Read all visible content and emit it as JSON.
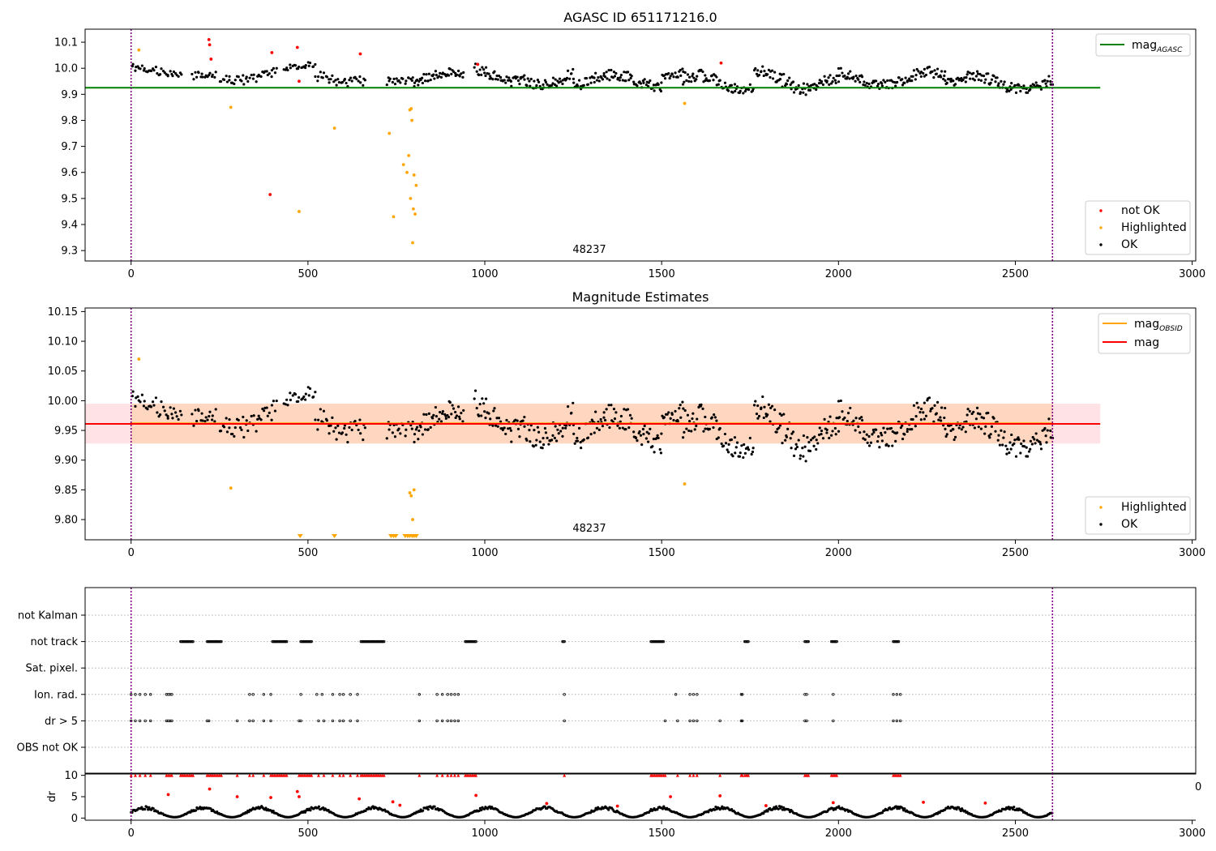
{
  "colors": {
    "ok": "#000000",
    "not_ok": "#ff0000",
    "highlighted": "#ffa500",
    "mag_agasc_line": "#008000",
    "mag_obsid_line": "#ffa500",
    "mag_line": "#ff0000",
    "band_red": "#ffb6c1",
    "band_orange": "#ffcc99",
    "obs_boundary": "#800080",
    "grid": "#b0b0b0"
  },
  "chart_data": [
    {
      "type": "scatter",
      "title": "AGASC ID 651171216.0",
      "annotation": "48237",
      "xlim": [
        -130,
        3010
      ],
      "ylim": [
        9.26,
        10.15
      ],
      "x_ticks": [
        0,
        500,
        1000,
        1500,
        2000,
        2500,
        3000
      ],
      "x_tick_labels": [
        "0",
        "500",
        "1000",
        "1500",
        "2000",
        "2500",
        "3000"
      ],
      "y_ticks": [
        9.3,
        9.4,
        9.5,
        9.6,
        9.7,
        9.8,
        9.9,
        10.0,
        10.1
      ],
      "y_tick_labels": [
        "9.3",
        "9.4",
        "9.5",
        "9.6",
        "9.7",
        "9.8",
        "9.9",
        "10.0",
        "10.1"
      ],
      "obs_boundaries": [
        0,
        2605
      ],
      "reference_lines": [
        {
          "name": "mag",
          "subscript": "AGASC",
          "y": 9.925,
          "x_range": [
            -130,
            2740
          ]
        }
      ],
      "legend_lines": [
        {
          "label": "mag",
          "subscript": "AGASC"
        }
      ],
      "legend_points": [
        {
          "label": "not OK"
        },
        {
          "label": "Highlighted"
        },
        {
          "label": "OK"
        }
      ],
      "ok_series": {
        "name": "OK",
        "segments": [
          {
            "x": [
              0,
              140
            ],
            "center": 9.985,
            "spread": 0.035,
            "step": 4
          },
          {
            "x": [
              170,
              240
            ],
            "center": 9.96,
            "spread": 0.03,
            "step": 4
          },
          {
            "x": [
              250,
              410
            ],
            "center": 9.975,
            "spread": 0.04,
            "step": 4
          },
          {
            "x": [
              430,
              520
            ],
            "center": 9.995,
            "spread": 0.03,
            "step": 4
          },
          {
            "x": [
              520,
              660
            ],
            "center": 9.97,
            "spread": 0.045,
            "step": 4
          },
          {
            "x": [
              720,
              800
            ],
            "center": 9.935,
            "spread": 0.035,
            "step": 4
          },
          {
            "x": [
              800,
              940
            ],
            "center": 9.965,
            "spread": 0.04,
            "step": 3
          },
          {
            "x": [
              970,
              1100
            ],
            "center": 9.975,
            "spread": 0.045,
            "step": 3
          },
          {
            "x": [
              1100,
              1250
            ],
            "center": 9.965,
            "spread": 0.045,
            "step": 3
          },
          {
            "x": [
              1250,
              1500
            ],
            "center": 9.95,
            "spread": 0.045,
            "step": 3
          },
          {
            "x": [
              1500,
              1560
            ],
            "center": 9.995,
            "spread": 0.035,
            "step": 3
          },
          {
            "x": [
              1560,
              1760
            ],
            "center": 9.945,
            "spread": 0.05,
            "step": 3
          },
          {
            "x": [
              1760,
              2000
            ],
            "center": 9.955,
            "spread": 0.06,
            "step": 3
          },
          {
            "x": [
              2000,
              2300
            ],
            "center": 9.96,
            "spread": 0.045,
            "step": 3
          },
          {
            "x": [
              2300,
              2605
            ],
            "center": 9.945,
            "spread": 0.045,
            "step": 3
          }
        ]
      },
      "not_ok_points": {
        "x": [
          220,
          222,
          226,
          393,
          398,
          470,
          475,
          648,
          980,
          1668
        ],
        "y": [
          10.11,
          10.09,
          10.035,
          9.515,
          10.06,
          10.08,
          9.95,
          10.055,
          10.015,
          10.02
        ]
      },
      "highlighted_points": {
        "x": [
          22,
          282,
          475,
          575,
          730,
          742,
          770,
          780,
          785,
          788,
          790,
          792,
          794,
          796,
          798,
          800,
          803,
          806,
          1565
        ],
        "y": [
          10.07,
          9.85,
          9.45,
          9.77,
          9.75,
          9.43,
          9.63,
          9.6,
          9.665,
          9.84,
          9.5,
          9.845,
          9.8,
          9.33,
          9.46,
          9.59,
          9.44,
          9.55,
          9.865
        ]
      }
    },
    {
      "type": "scatter",
      "title": "Magnitude Estimates",
      "annotation": "48237",
      "xlim": [
        -130,
        3010
      ],
      "ylim": [
        9.766,
        10.156
      ],
      "x_ticks": [
        0,
        500,
        1000,
        1500,
        2000,
        2500,
        3000
      ],
      "x_tick_labels": [
        "0",
        "500",
        "1000",
        "1500",
        "2000",
        "2500",
        "3000"
      ],
      "y_ticks": [
        9.8,
        9.85,
        9.9,
        9.95,
        10.0,
        10.05,
        10.1,
        10.15
      ],
      "y_tick_labels": [
        "9.80",
        "9.85",
        "9.90",
        "9.95",
        "10.00",
        "10.05",
        "10.10",
        "10.15"
      ],
      "obs_boundaries": [
        0,
        2605
      ],
      "bands": [
        {
          "name": "mag range",
          "y": [
            9.928,
            9.995
          ],
          "x_range": [
            -130,
            2740
          ]
        },
        {
          "name": "mag_OBSID range",
          "y": [
            9.928,
            9.995
          ],
          "x_range": [
            0,
            2605
          ]
        }
      ],
      "reference_lines": [
        {
          "name": "mag",
          "subscript": "OBSID",
          "y": 9.962,
          "x_range": [
            0,
            2605
          ]
        },
        {
          "name": "mag",
          "y": 9.961,
          "x_range": [
            -130,
            2740
          ]
        }
      ],
      "legend_lines": [
        {
          "label": "mag",
          "subscript": "OBSID"
        },
        {
          "label": "mag"
        }
      ],
      "legend_points": [
        {
          "label": "Highlighted"
        },
        {
          "label": "OK"
        }
      ],
      "ok_series": {
        "name": "OK",
        "segments": [
          {
            "x": [
              0,
              140
            ],
            "center": 9.985,
            "spread": 0.035,
            "step": 4
          },
          {
            "x": [
              170,
              240
            ],
            "center": 9.96,
            "spread": 0.03,
            "step": 4
          },
          {
            "x": [
              250,
              410
            ],
            "center": 9.975,
            "spread": 0.04,
            "step": 4
          },
          {
            "x": [
              430,
              520
            ],
            "center": 9.995,
            "spread": 0.03,
            "step": 4
          },
          {
            "x": [
              520,
              660
            ],
            "center": 9.97,
            "spread": 0.045,
            "step": 4
          },
          {
            "x": [
              720,
              800
            ],
            "center": 9.935,
            "spread": 0.035,
            "step": 4
          },
          {
            "x": [
              800,
              940
            ],
            "center": 9.965,
            "spread": 0.04,
            "step": 3
          },
          {
            "x": [
              970,
              1100
            ],
            "center": 9.975,
            "spread": 0.045,
            "step": 3
          },
          {
            "x": [
              1100,
              1250
            ],
            "center": 9.965,
            "spread": 0.045,
            "step": 3
          },
          {
            "x": [
              1250,
              1500
            ],
            "center": 9.95,
            "spread": 0.045,
            "step": 3
          },
          {
            "x": [
              1500,
              1560
            ],
            "center": 9.995,
            "spread": 0.035,
            "step": 3
          },
          {
            "x": [
              1560,
              1760
            ],
            "center": 9.945,
            "spread": 0.05,
            "step": 3
          },
          {
            "x": [
              1760,
              2000
            ],
            "center": 9.955,
            "spread": 0.06,
            "step": 3
          },
          {
            "x": [
              2000,
              2300
            ],
            "center": 9.96,
            "spread": 0.045,
            "step": 3
          },
          {
            "x": [
              2300,
              2605
            ],
            "center": 9.945,
            "spread": 0.045,
            "step": 3
          }
        ]
      },
      "highlighted_points": {
        "x": [
          22,
          282,
          788,
          792,
          796,
          800,
          1565
        ],
        "y": [
          10.07,
          9.853,
          9.845,
          9.84,
          9.8,
          9.85,
          9.86
        ]
      },
      "clipped_markers": {
        "x": [
          478,
          575,
          735,
          742,
          748,
          775,
          782,
          788,
          795,
          800,
          806
        ],
        "y_value": "below 9.80"
      }
    },
    {
      "type": "scatter",
      "categories": [
        "not Kalman",
        "not track",
        "Sat. pixel.",
        "Ion. rad.",
        "dr > 5",
        "OBS not OK"
      ],
      "xlim": [
        -130,
        3010
      ],
      "obs_boundaries": [
        0,
        2605
      ],
      "flags": {
        "not track": [
          [
            140,
            175
          ],
          [
            215,
            255
          ],
          [
            400,
            440
          ],
          [
            480,
            510
          ],
          [
            650,
            715
          ],
          [
            945,
            975
          ],
          [
            1220,
            1225
          ],
          [
            1470,
            1505
          ],
          [
            1735,
            1745
          ],
          [
            1905,
            1915
          ],
          [
            1980,
            1995
          ],
          [
            2155,
            2170
          ]
        ],
        "Ion. rad.": [
          0,
          12,
          25,
          40,
          55,
          100,
          105,
          110,
          115,
          335,
          345,
          375,
          395,
          480,
          525,
          540,
          570,
          590,
          600,
          620,
          640,
          815,
          865,
          880,
          895,
          905,
          915,
          925,
          1225,
          1540,
          1580,
          1590,
          1600,
          1725,
          1728,
          1905,
          1910,
          1985,
          2155,
          2165,
          2175
        ],
        "dr > 5": [
          0,
          12,
          25,
          40,
          55,
          100,
          105,
          110,
          115,
          215,
          220,
          300,
          335,
          345,
          375,
          395,
          475,
          480,
          530,
          545,
          570,
          590,
          600,
          620,
          640,
          815,
          865,
          880,
          895,
          905,
          915,
          925,
          1225,
          1510,
          1545,
          1580,
          1590,
          1600,
          1665,
          1725,
          1728,
          1905,
          1910,
          1985,
          2155,
          2165,
          2175
        ]
      }
    },
    {
      "type": "scatter",
      "ylabel": "dr",
      "xlim": [
        -130,
        3010
      ],
      "ylim": [
        -0.5,
        10.5
      ],
      "x_ticks": [
        0,
        500,
        1000,
        1500,
        2000,
        2500,
        3000
      ],
      "x_tick_labels": [
        "0",
        "500",
        "1000",
        "1500",
        "2000",
        "2500",
        "3000"
      ],
      "y_ticks": [
        0,
        5,
        10
      ],
      "y_tick_labels": [
        "0",
        "5",
        "10"
      ],
      "obs_boundaries": [
        0,
        2605
      ],
      "clipped_at": 10,
      "clipped_x": [
        0,
        12,
        25,
        40,
        55,
        100,
        105,
        110,
        115,
        140,
        145,
        150,
        155,
        160,
        165,
        170,
        175,
        215,
        220,
        225,
        230,
        235,
        240,
        245,
        250,
        255,
        300,
        335,
        345,
        375,
        395,
        400,
        405,
        410,
        415,
        420,
        425,
        430,
        435,
        440,
        475,
        480,
        485,
        490,
        495,
        500,
        505,
        510,
        530,
        545,
        570,
        590,
        600,
        620,
        640,
        650,
        655,
        660,
        665,
        670,
        675,
        680,
        685,
        690,
        695,
        700,
        705,
        710,
        715,
        815,
        865,
        880,
        895,
        905,
        915,
        925,
        945,
        950,
        955,
        960,
        965,
        970,
        975,
        1225,
        1470,
        1475,
        1480,
        1485,
        1490,
        1495,
        1500,
        1505,
        1510,
        1545,
        1580,
        1590,
        1600,
        1665,
        1725,
        1728,
        1735,
        1740,
        1745,
        1905,
        1910,
        1915,
        1980,
        1985,
        1990,
        1995,
        2155,
        2160,
        2165,
        2170,
        2175
      ],
      "red_points": {
        "x": [
          105,
          222,
          300,
          395,
          470,
          475,
          645,
          740,
          760,
          975,
          1175,
          1375,
          1525,
          1665,
          1795,
          1985,
          2240,
          2415
        ],
        "y": [
          5.5,
          6.8,
          5.0,
          4.8,
          6.2,
          5.0,
          4.5,
          3.8,
          3.0,
          5.3,
          3.4,
          2.8,
          5.0,
          5.2,
          2.9,
          3.6,
          3.7,
          3.5
        ]
      },
      "ok_drift": {
        "x_range": [
          0,
          2605
        ],
        "step": 3,
        "low": 0.2,
        "high": 2.8
      }
    }
  ],
  "stray_label": "0"
}
